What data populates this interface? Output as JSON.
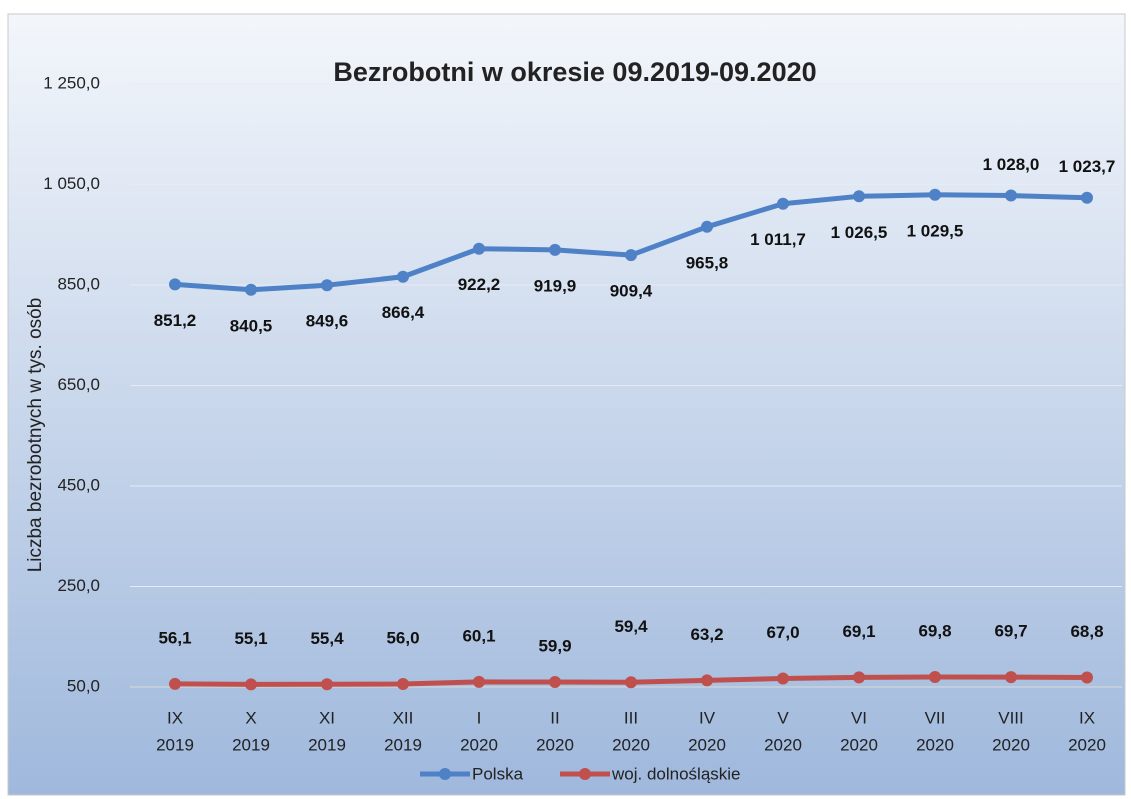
{
  "chart_data": {
    "type": "line",
    "title": "Bezrobotni w okresie 09.2019-09.2020",
    "y_axis_label": "Liczba bezrobotnych w tys. osób",
    "categories": [
      [
        "IX",
        "2019"
      ],
      [
        "X",
        "2019"
      ],
      [
        "XI",
        "2019"
      ],
      [
        "XII",
        "2019"
      ],
      [
        "I",
        "2020"
      ],
      [
        "II",
        "2020"
      ],
      [
        "III",
        "2020"
      ],
      [
        "IV",
        "2020"
      ],
      [
        "V",
        "2020"
      ],
      [
        "VI",
        "2020"
      ],
      [
        "VII",
        "2020"
      ],
      [
        "VIII",
        "2020"
      ],
      [
        "IX",
        "2020"
      ]
    ],
    "series": [
      {
        "name": "Polska",
        "color": "#4f81c7",
        "values": [
          851.2,
          840.5,
          849.6,
          866.4,
          922.2,
          919.9,
          909.4,
          965.8,
          1011.7,
          1026.5,
          1029.5,
          1028.0,
          1023.7
        ],
        "value_labels": [
          "851,2",
          "840,5",
          "849,6",
          "866,4",
          "922,2",
          "919,9",
          "909,4",
          "965,8",
          "1 011,7",
          "1 026,5",
          "1 029,5",
          "1 028,0",
          "1 023,7"
        ]
      },
      {
        "name": "woj. dolnośląskie",
        "color": "#c0504d",
        "values": [
          56.1,
          55.1,
          55.4,
          56.0,
          60.1,
          59.9,
          59.4,
          63.2,
          67.0,
          69.1,
          69.8,
          69.7,
          68.8
        ],
        "value_labels": [
          "56,1",
          "55,1",
          "55,4",
          "56,0",
          "60,1",
          "59,9",
          "59,4",
          "63,2",
          "67,0",
          "69,1",
          "69,8",
          "69,7",
          "68,8"
        ]
      }
    ],
    "ylim": [
      50,
      1250
    ],
    "yticks": [
      {
        "value": 50,
        "label": "50,0"
      },
      {
        "value": 250,
        "label": "250,0"
      },
      {
        "value": 450,
        "label": "450,0"
      },
      {
        "value": 650,
        "label": "650,0"
      },
      {
        "value": 850,
        "label": "850,0"
      },
      {
        "value": 1050,
        "label": "1 050,0"
      },
      {
        "value": 1250,
        "label": "1 250,0"
      }
    ],
    "grid": true,
    "legend": "bottom"
  }
}
